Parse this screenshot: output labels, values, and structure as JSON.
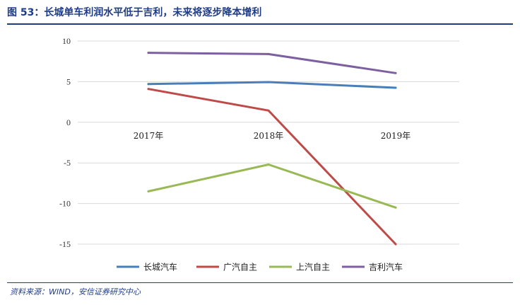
{
  "header": {
    "title": "图 53：长城单车利润水平低于吉利，未来将逐步降本增利"
  },
  "footer": {
    "source": "资料来源：WIND，安信证券研究中心"
  },
  "chart_data": {
    "type": "line",
    "title": "",
    "xlabel": "",
    "ylabel": "",
    "categories": [
      "2017年",
      "2018年",
      "2019年"
    ],
    "ylim": [
      -15,
      10
    ],
    "yticks": [
      10,
      5,
      0,
      -5,
      -10,
      -15
    ],
    "grid": true,
    "legend_position": "bottom",
    "series": [
      {
        "name": "长城汽车",
        "color": "#4a7ebb",
        "values": [
          4.7,
          4.95,
          4.25
        ]
      },
      {
        "name": "广汽自主",
        "color": "#be4b48",
        "values": [
          4.1,
          1.45,
          -15.0
        ]
      },
      {
        "name": "上汽自主",
        "color": "#98b954",
        "values": [
          -8.5,
          -5.2,
          -10.5
        ]
      },
      {
        "name": "吉利汽车",
        "color": "#7d60a0",
        "values": [
          8.55,
          8.4,
          6.05
        ]
      }
    ]
  }
}
